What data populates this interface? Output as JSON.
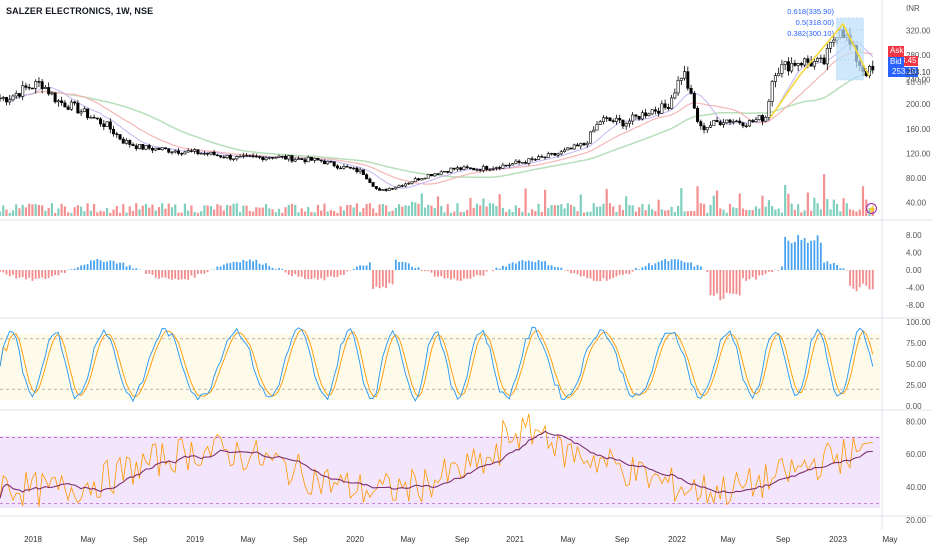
{
  "header": {
    "symbol_title": "SALZER ELECTRONICS, 1W, NSE",
    "currency": "INR"
  },
  "quote": {
    "ask_label": "Ask",
    "ask_value": "253.45",
    "bid_label": "Bid",
    "bid_value": "253.10",
    "last_price": "253.10",
    "countdown": "1d 3h",
    "ask_color": "#f23645",
    "bid_color": "#2962ff"
  },
  "fib_labels": [
    "0.618(335.90)",
    "0.5(318.00)",
    "0.382(300.10)"
  ],
  "lightning_icon": "lightning-icon",
  "chart_data": {
    "type": "candlestick",
    "x_labels": [
      "2018",
      "May",
      "Sep",
      "2019",
      "May",
      "Sep",
      "2020",
      "May",
      "Sep",
      "2021",
      "May",
      "Sep",
      "2022",
      "May",
      "Sep",
      "2023",
      "May"
    ],
    "price_ticks": [
      "320.00",
      "280.00",
      "240.00",
      "200.00",
      "160.00",
      "120.00",
      "80.00",
      "40.00"
    ],
    "macd_ticks": [
      "8.00",
      "4.00",
      "0.00",
      "-4.00",
      "-8.00"
    ],
    "stoch_ticks": [
      "100.00",
      "75.00",
      "50.00",
      "25.00",
      "0.00"
    ],
    "rsi_ticks": [
      "80.00",
      "60.00",
      "40.00",
      "20.00"
    ],
    "close_approx": [
      [
        2018.0,
        210
      ],
      [
        2018.1,
        225
      ],
      [
        2018.2,
        235
      ],
      [
        2018.3,
        205
      ],
      [
        2018.4,
        195
      ],
      [
        2018.5,
        180
      ],
      [
        2018.6,
        165
      ],
      [
        2018.7,
        140
      ],
      [
        2018.8,
        130
      ],
      [
        2019.0,
        125
      ],
      [
        2019.2,
        120
      ],
      [
        2019.4,
        112
      ],
      [
        2019.6,
        115
      ],
      [
        2019.8,
        110
      ],
      [
        2019.9,
        108
      ],
      [
        2020.0,
        100
      ],
      [
        2020.15,
        90
      ],
      [
        2020.25,
        58
      ],
      [
        2020.4,
        70
      ],
      [
        2020.55,
        85
      ],
      [
        2020.7,
        95
      ],
      [
        2020.85,
        95
      ],
      [
        2021.0,
        100
      ],
      [
        2021.2,
        110
      ],
      [
        2021.35,
        120
      ],
      [
        2021.5,
        135
      ],
      [
        2021.6,
        175
      ],
      [
        2021.75,
        170
      ],
      [
        2021.9,
        190
      ],
      [
        2022.0,
        195
      ],
      [
        2022.1,
        255
      ],
      [
        2022.2,
        160
      ],
      [
        2022.35,
        175
      ],
      [
        2022.5,
        170
      ],
      [
        2022.6,
        180
      ],
      [
        2022.65,
        255
      ],
      [
        2022.8,
        270
      ],
      [
        2022.95,
        265
      ],
      [
        2023.05,
        330
      ],
      [
        2023.15,
        275
      ],
      [
        2023.2,
        253.1
      ]
    ],
    "colors": {
      "up": "#000000",
      "down": "#000000",
      "volume_up": "#7fcfbf",
      "volume_down": "#f49090",
      "macd_up": "#4aa3f0",
      "macd_down": "#f28b8b",
      "stoch_k": "#2196f3",
      "stoch_d": "#ff9800",
      "rsi": "#ff9800",
      "rsi_ma": "#7e2f6e",
      "fib_line": "#f5d93a"
    }
  }
}
